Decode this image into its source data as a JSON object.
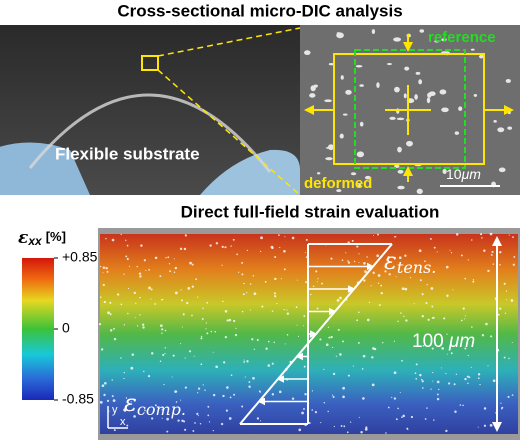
{
  "top_title": "Cross-sectional micro-DIC analysis",
  "photo": {
    "label": "Flexible substrate"
  },
  "sem": {
    "reference": "reference",
    "deformed": "deformed",
    "scale_number": "10",
    "scale_unit": "μm"
  },
  "bottom_title": "Direct full-field strain evaluation",
  "colorbar": {
    "symbol": "ε",
    "subscript": "xx",
    "unit": "[%]",
    "lim": [
      -0.85,
      0.85
    ],
    "ticks": [
      {
        "value": 0.85,
        "label": "+0.85"
      },
      0,
      -0.85
    ]
  },
  "field": {
    "tension_symbol": "ε",
    "tension_subscript": "tens.",
    "compression_symbol": "ε",
    "compression_subscript": "comp.",
    "thickness_number": "100",
    "thickness_unit": "μm",
    "axis_y": "y",
    "axis_x": "x"
  }
}
